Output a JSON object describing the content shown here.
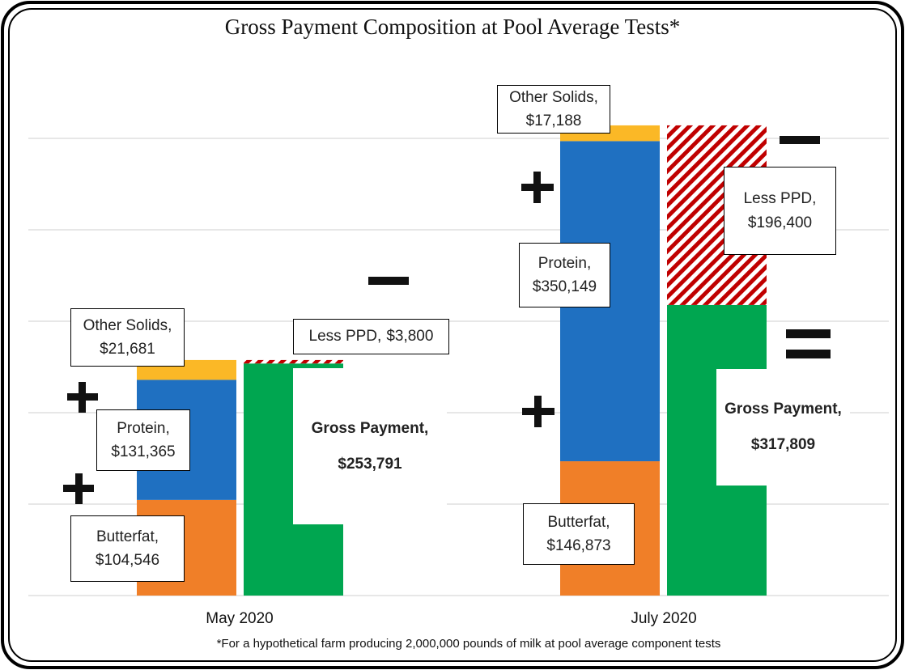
{
  "chart_data": {
    "type": "bar",
    "stacked": true,
    "title": "Gross Payment Composition at Pool Average Tests*",
    "footnote": "*For a hypothetical farm producing 2,000,000 pounds of milk at pool average component tests",
    "categories": [
      "May 2020",
      "July 2020"
    ],
    "ylim": [
      0,
      600000
    ],
    "yticks": [
      0,
      100000,
      200000,
      300000,
      400000,
      500000
    ],
    "grid": true,
    "series": [
      {
        "name": "Butterfat,",
        "color": "#f07f28",
        "stack": "components",
        "values": [
          104546,
          146873
        ],
        "value_labels": [
          "$104,546",
          "$146,873"
        ]
      },
      {
        "name": "Protein,",
        "color": "#1f70c1",
        "stack": "components",
        "values": [
          131365,
          350149
        ],
        "value_labels": [
          "$131,365",
          "$350,149"
        ]
      },
      {
        "name": "Other Solids,",
        "color": "#fbb826",
        "stack": "components",
        "values": [
          21681,
          17188
        ],
        "value_labels": [
          "$21,681",
          "$17,188"
        ]
      },
      {
        "name": "Gross Payment,",
        "color": "#00a650",
        "stack": "payment",
        "values": [
          253791,
          317809
        ],
        "value_labels": [
          "$253,791",
          "$317,809"
        ]
      },
      {
        "name": "Less PPD,",
        "color": "#c00000",
        "pattern": "hatch",
        "stack": "payment",
        "values": [
          3800,
          196400
        ],
        "value_labels": [
          "$3,800",
          "$196,400"
        ]
      }
    ]
  }
}
